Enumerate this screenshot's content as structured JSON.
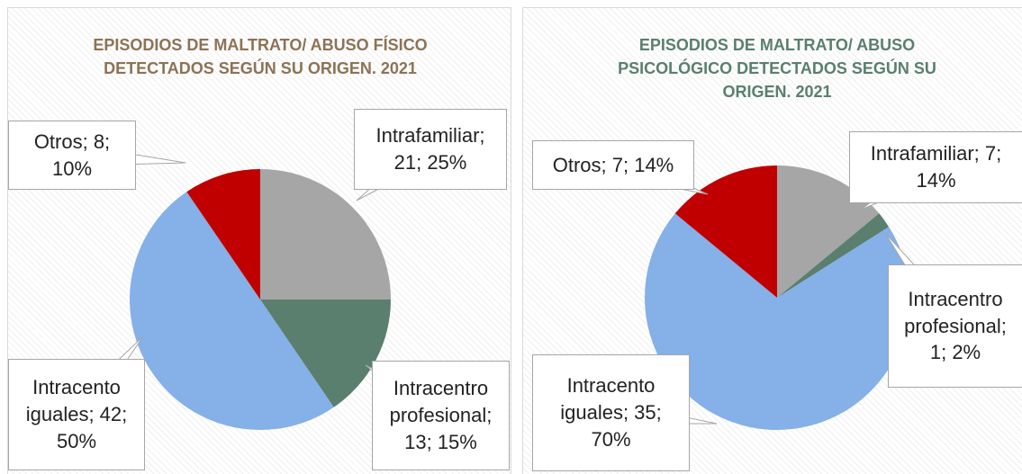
{
  "chart_data": [
    {
      "type": "pie",
      "title": "EPISODIOS DE MALTRATO/ ABUSO FÍSICO DETECTADOS SEGÚN SU ORIGEN. 2021",
      "title_color": "#8c7355",
      "values": [
        21,
        13,
        42,
        8
      ],
      "value_labels": [
        "Intrafamiliar; 21; 25%",
        "Intracentro profesional; 13; 15%",
        "Intracento iguales; 42; 50%",
        "Otros; 8; 10%"
      ],
      "colors": [
        "#a6a6a6",
        "#5a7f6e",
        "#85b0e8",
        "#c00000"
      ]
    },
    {
      "type": "pie",
      "title": "EPISODIOS DE MALTRATO/ ABUSO PSICOLÓGICO DETECTADOS SEGÚN SU ORIGEN. 2021",
      "title_color": "#5a7f6e",
      "values": [
        7,
        1,
        35,
        7
      ],
      "value_labels": [
        "Intrafamiliar; 7; 14%",
        "Intracentro profesional; 1; 2%",
        "Intracento iguales; 35; 70%",
        "Otros; 7; 14%"
      ],
      "colors": [
        "#a6a6a6",
        "#5a7f6e",
        "#85b0e8",
        "#c00000"
      ]
    }
  ]
}
